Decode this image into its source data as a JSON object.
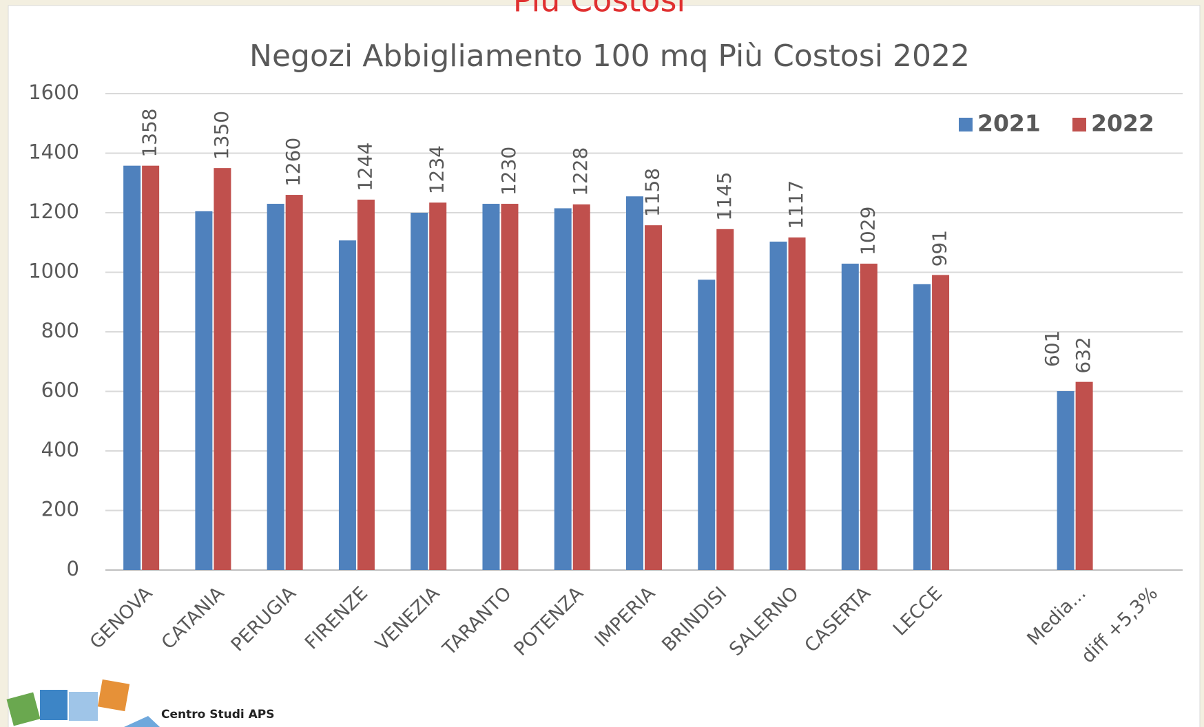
{
  "banner": "Più Costosi",
  "logo": "Centro Studi APS",
  "chart_data": {
    "type": "bar",
    "title": "Negozi Abbigliamento 100 mq Più Costosi 2022",
    "categories": [
      "GENOVA",
      "CATANIA",
      "PERUGIA",
      "FIRENZE",
      "VENEZIA",
      "TARANTO",
      "POTENZA",
      "IMPERIA",
      "BRINDISI",
      "SALERNO",
      "CASERTA",
      "LECCE",
      null,
      "Media...",
      "diff +5,3%"
    ],
    "series": [
      {
        "name": "2021",
        "color": "#4f81bd",
        "values": [
          1358,
          1205,
          1230,
          1107,
          1200,
          1230,
          1215,
          1255,
          975,
          1103,
          1029,
          960,
          null,
          601,
          null
        ],
        "value_labels": [
          null,
          null,
          null,
          null,
          null,
          null,
          null,
          null,
          null,
          null,
          null,
          null,
          null,
          "601",
          null
        ]
      },
      {
        "name": "2022",
        "color": "#c0504d",
        "show_values": true,
        "values": [
          1358,
          1350,
          1260,
          1244,
          1234,
          1230,
          1228,
          1158,
          1145,
          1117,
          1029,
          991,
          null,
          632,
          null
        ]
      }
    ],
    "ylim": [
      0,
      1600
    ],
    "yticks": [
      0,
      200,
      400,
      600,
      800,
      1000,
      1200,
      1400,
      1600
    ],
    "grid": true,
    "legend": "top-right"
  }
}
